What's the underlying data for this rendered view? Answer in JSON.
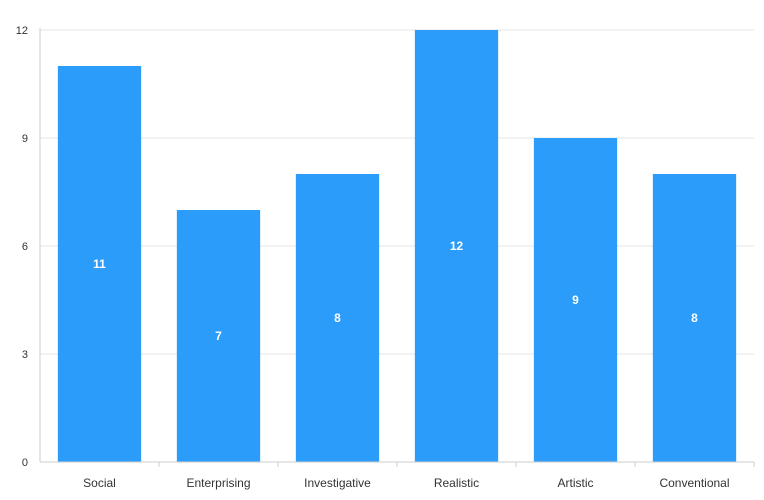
{
  "chart_data": {
    "type": "bar",
    "categories": [
      "Social",
      "Enterprising",
      "Investigative",
      "Realistic",
      "Artistic",
      "Conventional"
    ],
    "values": [
      11,
      7,
      8,
      12,
      9,
      8
    ],
    "title": "",
    "xlabel": "",
    "ylabel": "",
    "ylim": [
      0,
      12
    ],
    "yticks": [
      0,
      3,
      6,
      9,
      12
    ],
    "grid": true,
    "legend": "none",
    "data_labels": true
  },
  "colors": {
    "bar": "#2b9cf9",
    "grid": "#e6e6e6",
    "axis": "#cccccc",
    "text": "#333333",
    "data_label": "#ffffff"
  }
}
